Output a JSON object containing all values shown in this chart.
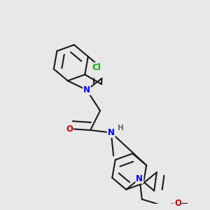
{
  "background_color": "#e8e8e8",
  "bond_color": "#1a1a1a",
  "bond_width": 1.5,
  "atom_colors": {
    "N": "#0000ff",
    "O": "#cc0000",
    "Cl": "#00aa00",
    "H": "#666666",
    "C": "#1a1a1a"
  }
}
